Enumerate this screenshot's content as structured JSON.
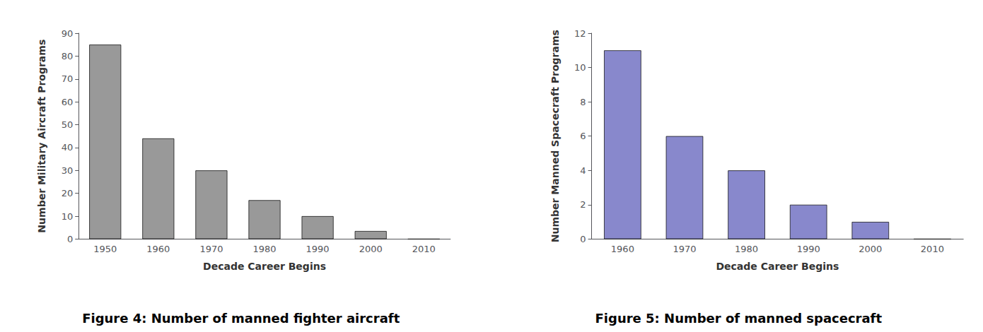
{
  "chart_data": [
    {
      "type": "bar",
      "title": "Figure 4: Number of manned fighter aircraft",
      "categories": [
        "1950",
        "1960",
        "1970",
        "1980",
        "1990",
        "2000",
        "2010"
      ],
      "values": [
        85,
        44,
        30,
        17,
        10,
        3.5,
        0
      ],
      "color": "#999999",
      "xlabel": "Decade Career Begins",
      "ylabel": "Number Military Aircraft Programs",
      "ylim": [
        0,
        90
      ],
      "yticks": [
        0,
        10,
        20,
        30,
        40,
        50,
        60,
        70,
        80,
        90
      ],
      "grid": false
    },
    {
      "type": "bar",
      "title": "Figure 5: Number of manned spacecraft",
      "categories": [
        "1960",
        "1970",
        "1980",
        "1990",
        "2000",
        "2010"
      ],
      "values": [
        11,
        6,
        4,
        2,
        1,
        0
      ],
      "color": "#8888cc",
      "xlabel": "Decade Career Begins",
      "ylabel": "Number Manned Spacecraft Programs",
      "ylim": [
        0,
        12
      ],
      "yticks": [
        0,
        2,
        4,
        6,
        8,
        10,
        12
      ],
      "grid": false
    }
  ]
}
